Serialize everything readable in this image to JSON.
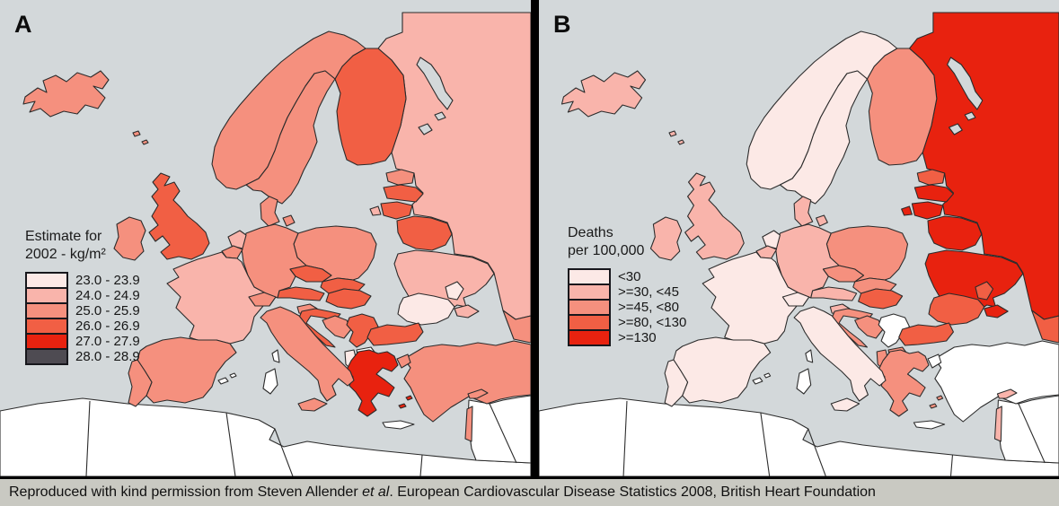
{
  "chart_data": [
    {
      "type": "heatmap",
      "panel_label": "A",
      "legend_title": [
        "Estimate for",
        "2002 - kg/m²"
      ],
      "legend": [
        {
          "label": "23.0 - 23.9",
          "color": "#fce9e6"
        },
        {
          "label": "24.0 - 24.9",
          "color": "#f9b4ab"
        },
        {
          "label": "25.0 - 25.9",
          "color": "#f5907e"
        },
        {
          "label": "26.0 - 26.9",
          "color": "#f15f44"
        },
        {
          "label": "27.0 - 27.9",
          "color": "#e8220f"
        },
        {
          "label": "28.0 - 28.9",
          "color": "#4e4b52"
        }
      ],
      "no_data_color": "#ffffff",
      "country_categories": {
        "iceland": 3,
        "norway": 3,
        "sweden": 3,
        "finland": 4,
        "denmark": 3,
        "uk": 4,
        "ireland": 3,
        "netherlands": 2,
        "belgium": 3,
        "germany": 3,
        "france": 2,
        "spain": 3,
        "portugal": 3,
        "italy": 3,
        "switzerland": 3,
        "austria": 4,
        "czech": 4,
        "slovakia": 4,
        "poland": 3,
        "hungary": 4,
        "slovenia": 3,
        "croatia": 4,
        "bosnia": 3,
        "serbia": 4,
        "albania": 1,
        "macedonia": 0,
        "greece": 5,
        "bulgaria": 4,
        "romania": 1,
        "moldova": 1,
        "ukraine": 2,
        "belarus": 4,
        "estonia": 3,
        "latvia": 4,
        "lithuania": 4,
        "russia": 2,
        "turkey": 3,
        "cyprus": 3,
        "israel": 3,
        "caucasus": 3
      }
    },
    {
      "type": "heatmap",
      "panel_label": "B",
      "legend_title": [
        "Deaths",
        "per 100,000"
      ],
      "legend": [
        {
          "label": "<30",
          "color": "#fce9e6"
        },
        {
          "label": ">=30, <45",
          "color": "#f9b4ab"
        },
        {
          "label": ">=45, <80",
          "color": "#f5907e"
        },
        {
          "label": ">=80, <130",
          "color": "#f15f44"
        },
        {
          "label": ">=130",
          "color": "#e8220f"
        }
      ],
      "no_data_color": "#ffffff",
      "country_categories": {
        "iceland": 2,
        "norway": 1,
        "sweden": 1,
        "finland": 3,
        "denmark": 2,
        "uk": 2,
        "ireland": 2,
        "netherlands": 1,
        "belgium": 2,
        "germany": 2,
        "france": 1,
        "spain": 1,
        "portugal": 1,
        "italy": 1,
        "switzerland": 1,
        "austria": 2,
        "czech": 3,
        "slovakia": 3,
        "poland": 3,
        "hungary": 4,
        "slovenia": 2,
        "croatia": 3,
        "bosnia": 3,
        "serbia": 0,
        "albania": 3,
        "macedonia": 3,
        "greece": 3,
        "bulgaria": 4,
        "romania": 4,
        "moldova": 4,
        "ukraine": 5,
        "belarus": 5,
        "estonia": 4,
        "latvia": 5,
        "lithuania": 5,
        "russia": 5,
        "turkey": 0,
        "cyprus": 2,
        "israel": 2,
        "caucasus": 4
      }
    }
  ],
  "caption": {
    "prefix": "Reproduced with kind permission from Steven Allender ",
    "italic": "et al",
    "suffix": ". European Cardiovascular Disease Statistics 2008, British Heart Foundation"
  },
  "colors": {
    "sea": "#d3d8da",
    "border": "#2b2b2b",
    "no_data": "#ffffff",
    "divider": "#000000",
    "caption_bg": "#c9c9c2"
  }
}
